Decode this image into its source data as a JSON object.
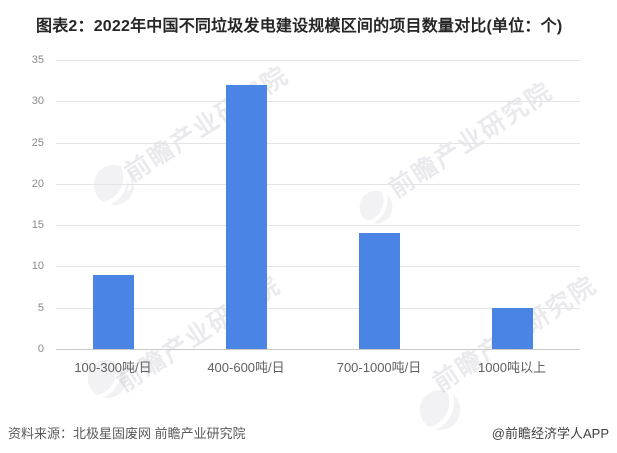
{
  "title": "图表2：2022年中国不同垃圾发电建设规模区间的项目数量对比(单位：个)",
  "chart_data": {
    "type": "bar",
    "categories": [
      "100-300吨/日",
      "400-600吨/日",
      "700-1000吨/日",
      "1000吨以上"
    ],
    "values": [
      9,
      32,
      14,
      5
    ],
    "title": "图表2：2022年中国不同垃圾发电建设规模区间的项目数量对比(单位：个)",
    "xlabel": "",
    "ylabel": "",
    "ylim": [
      0,
      35
    ],
    "yticks": [
      0,
      5,
      10,
      15,
      20,
      25,
      30,
      35
    ],
    "grid": true,
    "legend": false,
    "bar_color": "#4a84e4"
  },
  "footer": {
    "source": "资料来源：北极星固废网 前瞻产业研究院",
    "credit": "@前瞻经济学人APP"
  },
  "watermark": {
    "text": "前瞻产业研究院",
    "subtext": "·  ·  ·  ·  ·  ·  ·  ·  ·  ·",
    "logo": "qianzhan-logo"
  },
  "colors": {
    "bar": "#4a84e4",
    "gridline": "#e4e4e6",
    "axis": "#c9c9c9",
    "title_text": "#262626",
    "tick_text": "#8a8a8a",
    "category_text": "#5f5f5f",
    "source_text": "#595959",
    "credit_text": "#404040"
  }
}
